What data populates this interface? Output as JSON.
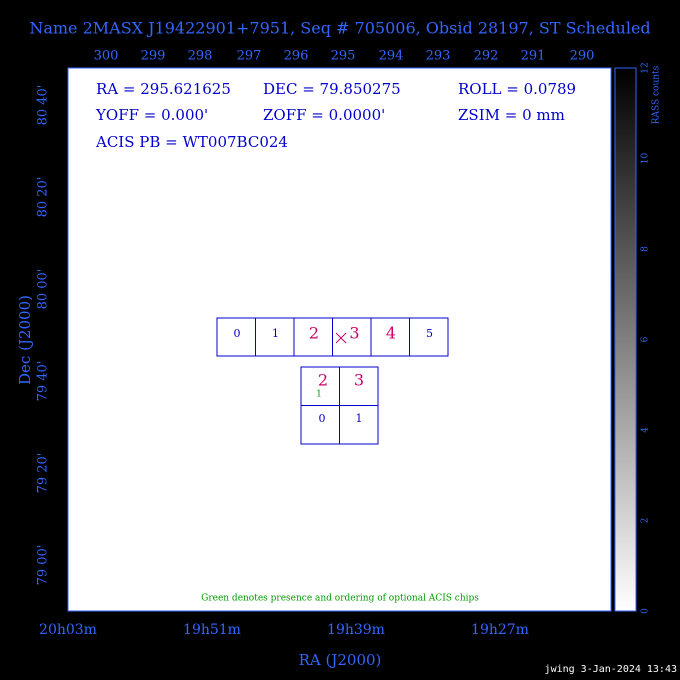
{
  "header": {
    "title": "Name 2MASX J19422901+7951, Seq # 705006, Obsid 28197, ST Scheduled"
  },
  "top_axis": {
    "labels": [
      "300",
      "299",
      "298",
      "297",
      "296",
      "295",
      "294",
      "293",
      "292",
      "291",
      "290"
    ]
  },
  "left_axis": {
    "title": "Dec (J2000)",
    "labels": [
      "80 40'",
      "80 20'",
      "80 00'",
      "79 40'",
      "79 20'",
      "79 00'"
    ]
  },
  "bottom_axis": {
    "title": "RA (J2000)",
    "labels": [
      "20h03m",
      "19h51m",
      "19h39m",
      "19h27m"
    ]
  },
  "colorbar": {
    "title": "RASS counts",
    "labels": [
      "0",
      "2",
      "4",
      "6",
      "8",
      "10",
      "12"
    ]
  },
  "info": {
    "rows": [
      [
        "RA = 295.621625",
        "DEC = 79.850275",
        "ROLL = 0.0789"
      ],
      [
        "YOFF =   0.000'",
        "ZOFF =  0.0000'",
        "ZSIM = 0 mm"
      ],
      [
        "ACIS PB = WT007BC024"
      ]
    ]
  },
  "chips": {
    "acis_s": [
      "0",
      "1",
      "2",
      "3",
      "4",
      "5"
    ],
    "acis_i": [
      "2",
      "3",
      "0",
      "1"
    ],
    "optional": "1"
  },
  "note": "Green denotes presence and ordering of optional ACIS chips",
  "footer": "jwing  3-Jan-2024 13:43"
}
